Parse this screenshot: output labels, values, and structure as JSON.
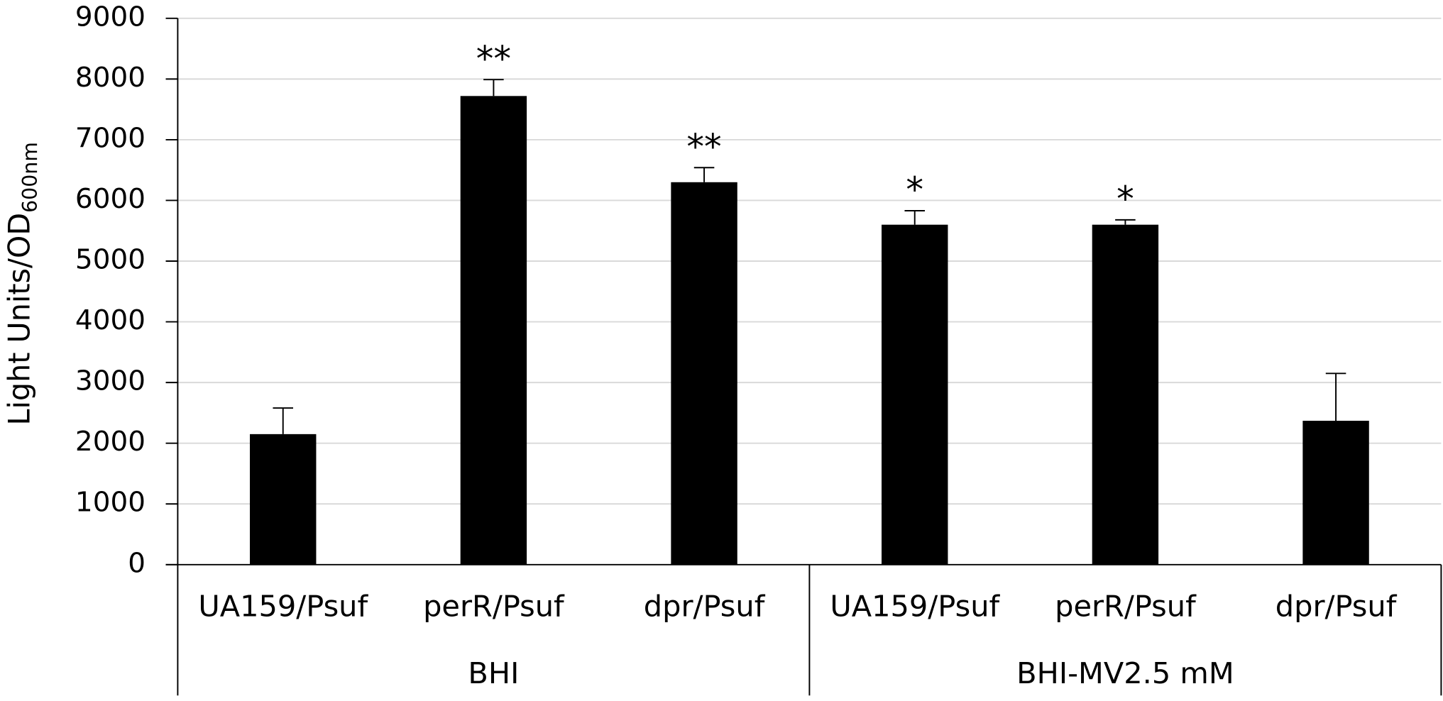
{
  "chart_data": {
    "type": "bar",
    "y_label": "Light Units/OD",
    "y_label_sub": "600nm",
    "color": "#000000",
    "ylim": [
      0,
      9000
    ],
    "yticks": [
      0,
      1000,
      2000,
      3000,
      4000,
      5000,
      6000,
      7000,
      8000,
      9000
    ],
    "grid": true,
    "groups": [
      {
        "name": "BHI",
        "categories": [
          "UA159/Psuf",
          "perR/Psuf",
          "dpr/Psuf"
        ],
        "values": [
          2150,
          7720,
          6300
        ],
        "errors": [
          430,
          270,
          240
        ],
        "annotations": [
          null,
          "**",
          "**"
        ]
      },
      {
        "name": "BHI-MV2.5 mM",
        "categories": [
          "UA159/Psuf",
          "perR/Psuf",
          "dpr/Psuf"
        ],
        "values": [
          5600,
          5600,
          2370
        ],
        "errors": [
          230,
          80,
          780
        ],
        "annotations": [
          "*",
          "*",
          null
        ]
      }
    ]
  }
}
